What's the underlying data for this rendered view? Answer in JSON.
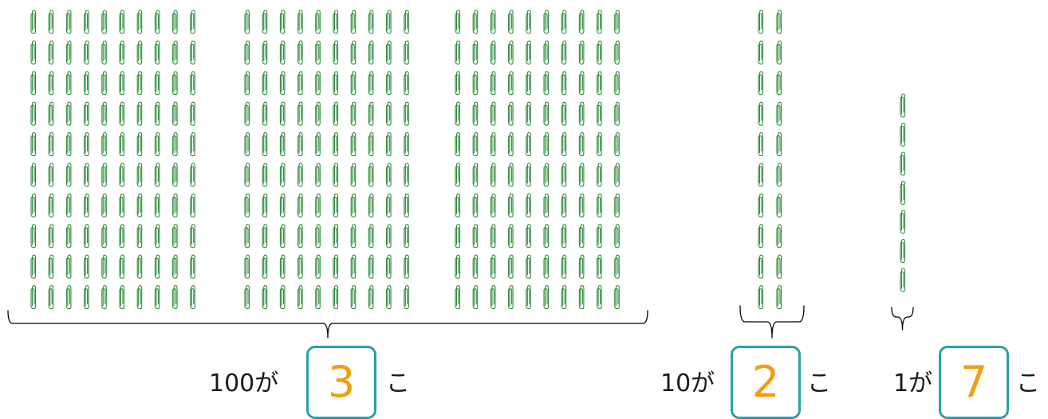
{
  "colors": {
    "clip": "#2e8b3a",
    "brace": "#000000",
    "box_border": "#2aa0a4",
    "answer": "#f39c12",
    "text": "#1a1a1a"
  },
  "icon": "paperclip-icon",
  "groups": [
    {
      "id": "hundreds",
      "blocks": 3,
      "clips_per_block": 100,
      "prefix": "100が",
      "answer": "3",
      "suffix": "こ"
    },
    {
      "id": "tens",
      "blocks": 2,
      "clips_per_block": 10,
      "prefix": "10が",
      "answer": "2",
      "suffix": "こ"
    },
    {
      "id": "ones",
      "blocks": 7,
      "clips_per_block": 1,
      "prefix": "1が",
      "answer": "7",
      "suffix": "こ"
    }
  ]
}
